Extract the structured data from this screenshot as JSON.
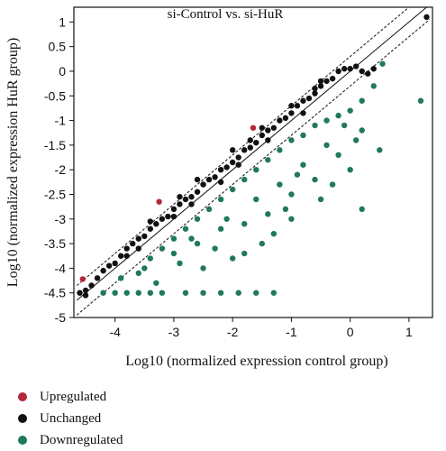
{
  "chart_data": {
    "type": "scatter",
    "title": "si-Control vs. si-HuR",
    "xlabel": "Log10 (normalized expression control group)",
    "ylabel": "Log10 (normalized expression HuR group)",
    "xlim": [
      -4.7,
      1.4
    ],
    "ylim": [
      -5,
      1.3
    ],
    "xticks": [
      -4,
      -3,
      -2,
      -1,
      0,
      1
    ],
    "yticks": [
      1,
      0.5,
      0,
      -0.5,
      -1,
      -1.5,
      -2,
      -2.5,
      -3,
      -3.5,
      -4,
      -4.5,
      -5
    ],
    "grid": false,
    "legend_position": "bottom-left",
    "reference_lines": [
      {
        "style": "solid",
        "intercept": 0
      },
      {
        "style": "dashed",
        "intercept": 0.3
      },
      {
        "style": "dashed",
        "intercept": -0.3
      }
    ],
    "series": [
      {
        "name": "Upregulated",
        "color": "#b3283b",
        "points": [
          [
            -4.55,
            -4.22
          ],
          [
            -3.25,
            -2.65
          ],
          [
            -1.65,
            -1.15
          ]
        ]
      },
      {
        "name": "Unchanged",
        "color": "#111111",
        "points": [
          [
            -4.6,
            -4.5
          ],
          [
            -4.5,
            -4.45
          ],
          [
            -4.4,
            -4.35
          ],
          [
            -4.3,
            -4.2
          ],
          [
            -4.2,
            -4.05
          ],
          [
            -4.1,
            -3.95
          ],
          [
            -4.0,
            -3.9
          ],
          [
            -3.9,
            -3.75
          ],
          [
            -3.8,
            -3.6
          ],
          [
            -3.7,
            -3.5
          ],
          [
            -3.6,
            -3.4
          ],
          [
            -3.5,
            -3.35
          ],
          [
            -3.4,
            -3.2
          ],
          [
            -3.3,
            -3.1
          ],
          [
            -3.2,
            -3.0
          ],
          [
            -3.1,
            -2.95
          ],
          [
            -3.0,
            -2.8
          ],
          [
            -2.9,
            -2.7
          ],
          [
            -2.8,
            -2.6
          ],
          [
            -2.7,
            -2.55
          ],
          [
            -2.6,
            -2.45
          ],
          [
            -2.5,
            -2.3
          ],
          [
            -2.4,
            -2.2
          ],
          [
            -2.3,
            -2.15
          ],
          [
            -2.2,
            -2.0
          ],
          [
            -2.1,
            -1.95
          ],
          [
            -2.0,
            -1.85
          ],
          [
            -1.9,
            -1.75
          ],
          [
            -1.8,
            -1.6
          ],
          [
            -1.7,
            -1.55
          ],
          [
            -1.6,
            -1.45
          ],
          [
            -1.5,
            -1.3
          ],
          [
            -1.4,
            -1.2
          ],
          [
            -1.3,
            -1.15
          ],
          [
            -1.2,
            -1.0
          ],
          [
            -1.1,
            -0.95
          ],
          [
            -1.0,
            -0.85
          ],
          [
            -0.9,
            -0.7
          ],
          [
            -0.8,
            -0.6
          ],
          [
            -0.7,
            -0.55
          ],
          [
            -0.6,
            -0.45
          ],
          [
            -0.5,
            -0.3
          ],
          [
            -0.4,
            -0.2
          ],
          [
            -0.3,
            -0.15
          ],
          [
            -0.2,
            0.0
          ],
          [
            -0.1,
            0.05
          ],
          [
            0.0,
            0.05
          ],
          [
            0.1,
            0.1
          ],
          [
            0.2,
            0.0
          ],
          [
            0.3,
            -0.05
          ],
          [
            0.4,
            0.05
          ],
          [
            1.3,
            1.1
          ],
          [
            -3.4,
            -3.05
          ],
          [
            -2.6,
            -2.2
          ],
          [
            -2.0,
            -1.6
          ],
          [
            -1.5,
            -1.15
          ],
          [
            -1.0,
            -0.7
          ],
          [
            -0.5,
            -0.2
          ],
          [
            -3.0,
            -2.95
          ],
          [
            -2.2,
            -2.25
          ],
          [
            -1.4,
            -1.4
          ],
          [
            -0.8,
            -0.85
          ],
          [
            -4.5,
            -4.55
          ],
          [
            -3.8,
            -3.75
          ],
          [
            -2.9,
            -2.55
          ],
          [
            -1.7,
            -1.4
          ],
          [
            -0.6,
            -0.35
          ],
          [
            -1.9,
            -1.9
          ],
          [
            -2.7,
            -2.7
          ],
          [
            -3.6,
            -3.6
          ]
        ]
      },
      {
        "name": "Downregulated",
        "color": "#1f7a57",
        "points": [
          [
            -4.2,
            -4.5
          ],
          [
            -4.0,
            -4.5
          ],
          [
            -3.8,
            -4.5
          ],
          [
            -3.6,
            -4.5
          ],
          [
            -3.4,
            -4.5
          ],
          [
            -3.2,
            -4.5
          ],
          [
            -2.8,
            -4.5
          ],
          [
            -2.5,
            -4.5
          ],
          [
            -2.2,
            -4.5
          ],
          [
            -1.9,
            -4.5
          ],
          [
            -1.6,
            -4.5
          ],
          [
            -1.3,
            -4.5
          ],
          [
            -3.5,
            -4.0
          ],
          [
            -3.0,
            -3.7
          ],
          [
            -2.6,
            -3.5
          ],
          [
            -2.2,
            -3.2
          ],
          [
            -1.8,
            -3.1
          ],
          [
            -1.4,
            -2.9
          ],
          [
            -1.0,
            -2.5
          ],
          [
            -0.6,
            -2.2
          ],
          [
            -0.2,
            -1.7
          ],
          [
            0.2,
            -1.2
          ],
          [
            0.55,
            0.15
          ],
          [
            0.4,
            -0.3
          ],
          [
            0.2,
            -0.6
          ],
          [
            0.0,
            -0.8
          ],
          [
            -0.2,
            -0.9
          ],
          [
            -0.4,
            -1.0
          ],
          [
            -0.6,
            -1.1
          ],
          [
            -0.8,
            -1.3
          ],
          [
            -1.0,
            -1.4
          ],
          [
            -1.2,
            -1.6
          ],
          [
            -1.4,
            -1.8
          ],
          [
            -1.6,
            -2.0
          ],
          [
            -1.8,
            -2.2
          ],
          [
            -2.0,
            -2.4
          ],
          [
            -2.2,
            -2.6
          ],
          [
            -2.4,
            -2.8
          ],
          [
            -2.6,
            -3.0
          ],
          [
            -2.8,
            -3.2
          ],
          [
            -3.0,
            -3.4
          ],
          [
            -3.2,
            -3.6
          ],
          [
            -3.4,
            -3.8
          ],
          [
            -3.6,
            -4.1
          ],
          [
            -3.9,
            -4.2
          ],
          [
            -2.0,
            -3.8
          ],
          [
            -1.5,
            -3.5
          ],
          [
            -1.0,
            -3.0
          ],
          [
            -0.5,
            -2.6
          ],
          [
            0.0,
            -2.0
          ],
          [
            -1.2,
            -2.3
          ],
          [
            -0.8,
            -1.9
          ],
          [
            -0.4,
            -1.5
          ],
          [
            0.1,
            -1.4
          ],
          [
            -2.5,
            -4.0
          ],
          [
            -1.8,
            -3.7
          ],
          [
            -3.3,
            -4.3
          ],
          [
            -2.9,
            -3.9
          ],
          [
            -2.3,
            -3.6
          ],
          [
            -1.1,
            -2.8
          ],
          [
            0.2,
            -2.8
          ],
          [
            1.2,
            -0.6
          ],
          [
            0.5,
            -1.6
          ],
          [
            -0.3,
            -2.3
          ],
          [
            -1.6,
            -2.6
          ],
          [
            -2.1,
            -3.0
          ],
          [
            -2.7,
            -3.4
          ],
          [
            -0.9,
            -2.1
          ],
          [
            -0.1,
            -1.1
          ],
          [
            -1.3,
            -3.3
          ]
        ]
      }
    ]
  }
}
